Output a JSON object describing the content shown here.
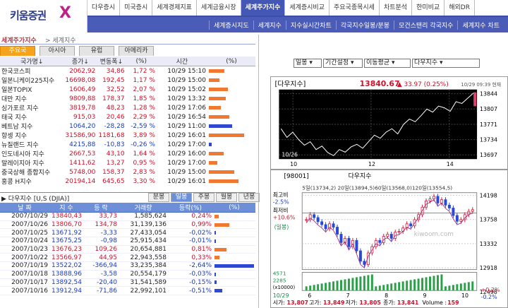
{
  "logo": {
    "text": "키움증권",
    "mark": "X"
  },
  "nav": [
    "다우증시",
    "미국증시",
    "세계경제지표",
    "세계금융시장",
    "세계주가지수",
    "세계증시비교",
    "주요국종목시세",
    "차트분석",
    "한미비교",
    "해외DR"
  ],
  "nav_active": "세계주가지수",
  "subnav": [
    "세계증시지도",
    "세계지수",
    "지수실시간차트",
    "각국지수일봉/분봉",
    "모건스탠리 각국지수",
    "세계지수 차트"
  ],
  "crumb": {
    "title": "세계주가지수",
    "sub": "세계지수"
  },
  "region_tabs": [
    "주요국",
    "아시아",
    "유럽",
    "아메리카"
  ],
  "region_active": "주요국",
  "table1": {
    "headers": [
      "국가명↓",
      "종가↓",
      "변동폭↓",
      "(%)",
      "시간",
      "(%)"
    ],
    "rows": [
      {
        "name": "한국코스피",
        "close": "2062,92",
        "chg": "34,86",
        "pct": "1,72 %",
        "time": "10/29 15:10",
        "dir": "up",
        "bar": 0.35
      },
      {
        "name": "일본니케이225지수",
        "close": "16698,08",
        "chg": "192,45",
        "pct": "1,17 %",
        "time": "10/29 15:00",
        "dir": "up",
        "bar": 0.24
      },
      {
        "name": "일본TOPIX",
        "close": "1606,49",
        "chg": "32,52",
        "pct": "2,07 %",
        "time": "10/29 15:02",
        "dir": "up",
        "bar": 0.42
      },
      {
        "name": "대만 지수",
        "close": "9809,88",
        "chg": "178,37",
        "pct": "1,85 %",
        "time": "10/29 13:32",
        "dir": "up",
        "bar": 0.37
      },
      {
        "name": "싱가포르 지수",
        "close": "3819,78",
        "chg": "48,23",
        "pct": "1,28 %",
        "time": "10/29 17:06",
        "dir": "up",
        "bar": 0.26
      },
      {
        "name": "태국 지수",
        "close": "915,03",
        "chg": "20,46",
        "pct": "2,29 %",
        "time": "10/29 16:54",
        "dir": "up",
        "bar": 0.46
      },
      {
        "name": "베트남 지수",
        "close": "1064,20",
        "chg": "-28,28",
        "pct": "-2,59 %",
        "time": "10/29 11:00",
        "dir": "dn",
        "bar": 0.52
      },
      {
        "name": "항셍 지수",
        "close": "31586,90",
        "chg": "1181,68",
        "pct": "3,89 %",
        "time": "10/29 16:01",
        "dir": "up",
        "bar": 0.78
      },
      {
        "name": "뉴질랜드 지수",
        "close": "4215,88",
        "chg": "-10,83",
        "pct": "-0,26 %",
        "time": "10/29 17:00",
        "dir": "dn",
        "bar": 0.06
      },
      {
        "name": "인도네시아 지수",
        "close": "2667,53",
        "chg": "43,10",
        "pct": "1,64 %",
        "time": "10/29 16:00",
        "dir": "up",
        "bar": 0.33
      },
      {
        "name": "말레이지아 지수",
        "close": "1411,62",
        "chg": "13,27",
        "pct": "0,95 %",
        "time": "10/29 17:00",
        "dir": "up",
        "bar": 0.19
      },
      {
        "name": "중국상해 종합지수",
        "close": "5748,00",
        "chg": "158,37",
        "pct": "2,83 %",
        "time": "10/29 15:00",
        "dir": "up",
        "bar": 0.57
      },
      {
        "name": "홍콩 H지수",
        "close": "20194,14",
        "chg": "645,65",
        "pct": "3,30 %",
        "time": "10/29 16:01",
        "dir": "up",
        "bar": 0.66
      }
    ]
  },
  "sec2": {
    "title": "다우지수 [U,S (DJIA)]"
  },
  "period_tabs": [
    "분봉",
    "일봉",
    "주봉",
    "월봉",
    "년봉"
  ],
  "period_active": "일봉",
  "table2": {
    "headers": [
      "날 짜",
      "지 수",
      "등 락",
      "거래량",
      "등락(%)",
      "(%)"
    ],
    "rows": [
      {
        "date": "2007/10/29",
        "idx": "13840,43",
        "chg": "33,73",
        "vol": "1,585,624",
        "pct": "0,24%",
        "dir": "up",
        "bar": 0.1
      },
      {
        "date": "2007/10/26",
        "idx": "13806,70",
        "chg": "134,78",
        "vol": "31,139,136",
        "pct": "0,99%",
        "dir": "up",
        "bar": 0.38
      },
      {
        "date": "2007/10/25",
        "idx": "13671,92",
        "chg": "-3,33",
        "vol": "27,433,054",
        "pct": "-0,02%",
        "dir": "dn",
        "bar": 0.02
      },
      {
        "date": "2007/10/24",
        "idx": "13675,25",
        "chg": "-0,98",
        "vol": "25,915,434",
        "pct": "-0,01%",
        "dir": "dn",
        "bar": 0.01
      },
      {
        "date": "2007/10/23",
        "idx": "13676,23",
        "chg": "109,26",
        "vol": "20,654,881",
        "pct": "0,81%",
        "dir": "up",
        "bar": 0.31
      },
      {
        "date": "2007/10/22",
        "idx": "13566,97",
        "chg": "44,95",
        "vol": "22,943,558",
        "pct": "0,33%",
        "dir": "up",
        "bar": 0.13
      },
      {
        "date": "2007/10/19",
        "idx": "13522,02",
        "chg": "-366,94",
        "vol": "33,235,384",
        "pct": "-2,64%",
        "dir": "dn",
        "bar": 1.0
      },
      {
        "date": "2007/10/18",
        "idx": "13888,96",
        "chg": "-3,58",
        "vol": "20,554,179",
        "pct": "-0,03%",
        "dir": "dn",
        "bar": 0.02
      },
      {
        "date": "2007/10/17",
        "idx": "13892,54",
        "chg": "-20,40",
        "vol": "31,541,589",
        "pct": "-0,15%",
        "dir": "dn",
        "bar": 0.06
      },
      {
        "date": "2007/10/16",
        "idx": "13912,94",
        "chg": "-71,86",
        "vol": "22,992,101",
        "pct": "-0,51%",
        "dir": "dn",
        "bar": 0.19
      }
    ]
  },
  "controls": {
    "period": "일봉",
    "range": "기간설정",
    "ma": "이동평균",
    "index": "다우지수"
  },
  "chart1": {
    "title": "[다우지수]",
    "value": "13840.67",
    "chg": "▲ 33.97 (0.25%)",
    "time": "10/29 09:39 현재",
    "yticks": [
      "13844",
      "13807",
      "13771",
      "13734",
      "13697"
    ],
    "xticks": [
      "10",
      "12",
      "14"
    ],
    "date_label": "10/26",
    "series": [
      13760,
      13740,
      13752,
      13735,
      13722,
      13730,
      13712,
      13720,
      13705,
      13698,
      13712,
      13706,
      13718,
      13724,
      13715,
      13730,
      13745,
      13738,
      13752,
      13760,
      13748,
      13770,
      13782,
      13776,
      13790,
      13805,
      13798,
      13812,
      13808,
      13800,
      13822,
      13818,
      13830,
      13842
    ]
  },
  "chart2": {
    "code": "[98001]",
    "name": "다우지수",
    "ma": "5일(13734,2) 20일(13894,5)60일(13568,0)120일(13554,5)",
    "hi_label": "최고비",
    "hi_pct": "-2.5%",
    "lo_label": "최저비",
    "lo_pct": "+10.6%",
    "mode": "(일봉)",
    "yticks": [
      "14198",
      "13758",
      "13332",
      "12918",
      "12498"
    ],
    "xticks": [
      "6",
      "7",
      "8",
      "9",
      "10"
    ],
    "vol_ticks": [
      "4571",
      "2285",
      "(x10000)"
    ],
    "date_label": "10/29",
    "chg_up": "+0.2%",
    "chg_dn": "-0.2%",
    "watermark": "kiwoom.com",
    "footer": {
      "open_l": "시가:",
      "open": "13,807",
      "high_l": "고가:",
      "high": "13,849",
      "low_l": "저가:",
      "low": "13,805",
      "close_l": "종가:",
      "close": "13,841",
      "vol_l": "Volume :",
      "vol": "159"
    }
  },
  "colors": {
    "up": "#d0102a",
    "down": "#1a3ab8",
    "bar_up": "#f07830",
    "bar_dn": "#3048d0",
    "nav": "#4457b5"
  }
}
